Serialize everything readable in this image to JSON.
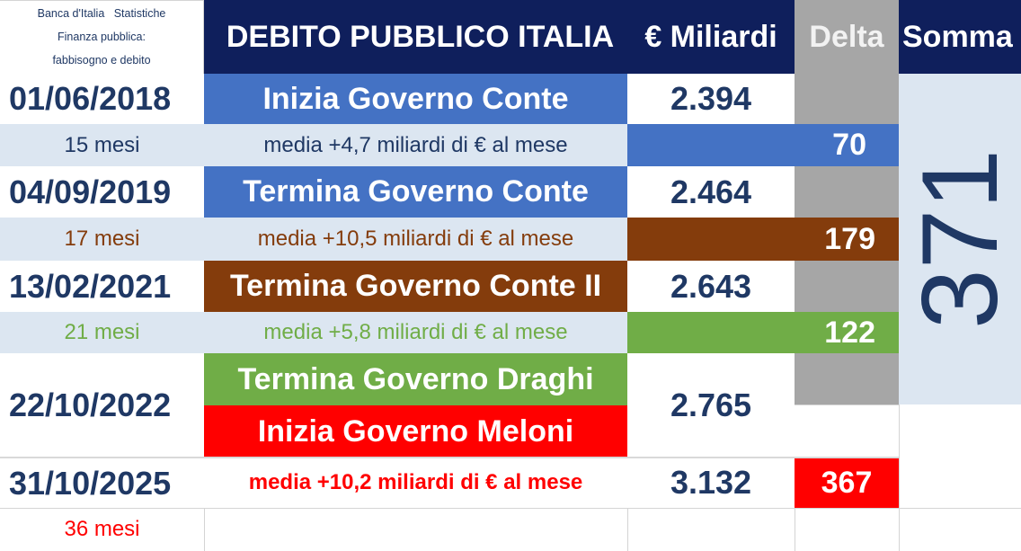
{
  "source": {
    "line1": "Banca d'Italia   Statistiche",
    "line2": "Finanza pubblica:",
    "line3": "fabbisogno e debito"
  },
  "header": {
    "title": "DEBITO PUBBLICO ITALIA",
    "unit": "€ Miliardi",
    "delta": "Delta",
    "somma": "Somma"
  },
  "rows": {
    "r1": {
      "date": "01/06/2018",
      "event": "Inizia Governo Conte",
      "debt": "2.394"
    },
    "p1": {
      "months": "15 mesi",
      "avg": "media +4,7 miliardi di € al mese",
      "delta": "70"
    },
    "r2": {
      "date": "04/09/2019",
      "event": "Termina Governo Conte",
      "debt": "2.464"
    },
    "p2": {
      "months": "17 mesi",
      "avg": "media +10,5 miliardi di € al mese",
      "delta": "179"
    },
    "r3": {
      "date": "13/02/2021",
      "event": "Termina Governo Conte II",
      "debt": "2.643"
    },
    "p3": {
      "months": "21 mesi",
      "avg": "media +5,8 miliardi di € al mese",
      "delta": "122"
    },
    "r4": {
      "date": "22/10/2022",
      "event_a": "Termina Governo Draghi",
      "event_b": "Inizia Governo Meloni",
      "debt": "2.765"
    },
    "r5": {
      "date": "31/10/2025",
      "avg": "media +10,2 miliardi di € al mese",
      "debt": "3.132",
      "delta": "367"
    },
    "p5": {
      "months": "36 mesi"
    }
  },
  "somma_total": "371",
  "colors": {
    "navy": "#0f1f5c",
    "blue": "#4472c4",
    "light_blue": "#dce6f1",
    "brown": "#843c0c",
    "green": "#70ad47",
    "red": "#ff0000",
    "gray": "#a6a6a6",
    "text_dark": "#1f3864"
  }
}
